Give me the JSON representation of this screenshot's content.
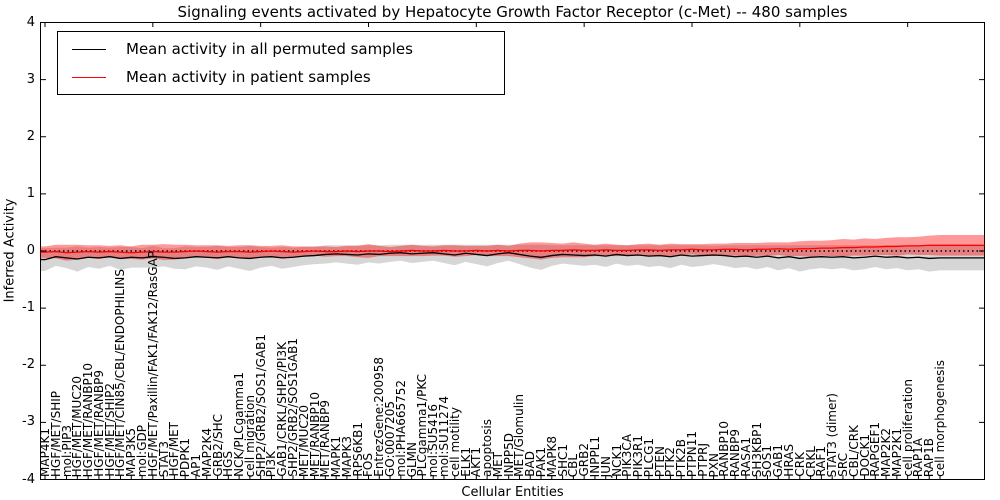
{
  "title": "Signaling events activated by Hepatocyte Growth Factor Receptor (c-Met) -- 480 samples",
  "xlabel": "Cellular Entities",
  "ylabel": "Inferred Activity",
  "legend": [
    {
      "label": "Mean activity in all permuted samples",
      "color": "#000000"
    },
    {
      "label": "Mean activity in patient samples",
      "color": "#ff0000"
    }
  ],
  "chart_data": {
    "type": "line",
    "title": "Signaling events activated by Hepatocyte Growth Factor Receptor (c-Met) -- 480 samples",
    "xlabel": "Cellular Entities",
    "ylabel": "Inferred Activity",
    "ylim": [
      -4,
      4
    ],
    "yticks": [
      4,
      3,
      2,
      1,
      0,
      -1,
      -2,
      -3,
      -4
    ],
    "grid": false,
    "legend_position": "upper left",
    "zero_line": {
      "style": "dotted",
      "color": "#000000",
      "y": 0
    },
    "categories": [
      "MAP4K1",
      "HGF/MET/SHIP",
      "mol:PIP3",
      "HGF/MET/MUC20",
      "HGF/MET/RANBP10",
      "HGF/MET/RANBP9",
      "HGF/MET/SHIP2",
      "HGF/MET/CIN85/CBL/ENDOPHILINS",
      "MAP3K5",
      "mol:GDP",
      "HGF/MET/Paxillin/FAK1/FAK12/RasGAP",
      "STAT3",
      "HGF/MET",
      "PDPK1",
      "AP1",
      "MAP2K4",
      "GRB2/SHC",
      "HGS",
      "NCK/PLCgamma1",
      "cell migration",
      "SHP2/GRB2/SOS1/GAB1",
      "PI3K",
      "GAB1/CRKL/SHP2/PI3K",
      "SHP2/GRB2/SOS1GAB1",
      "MET/MUC20",
      "MET/RANBP10",
      "MET/RANBP9",
      "MAPK1",
      "MAPK3",
      "RPS6KB1",
      "FOS",
      "EntrezGene:200958",
      "GO:0007205",
      "mol:PHA665752",
      "GLMN",
      "PLCgamma1/PKC",
      "mol:SU5416",
      "mol:SU11274",
      "cell motility",
      "ELK1",
      "AKT1",
      "apoptosis",
      "MET",
      "INPP5D",
      "MET/Glomulin",
      "BAD",
      "PAK1",
      "MAPK8",
      "SHC1",
      "CBL",
      "GRB2",
      "INPPL1",
      "JUN",
      "NCK1",
      "PIK3CA",
      "PIK3R1",
      "PLCG1",
      "PTEN",
      "PTK2",
      "PTK2B",
      "PTPN11",
      "PTPRJ",
      "PXN",
      "RANBP10",
      "RANBP9",
      "RASA1",
      "SH3KBP1",
      "SOS1",
      "GAB1",
      "HRAS",
      "CRK",
      "CRKL",
      "RAF1",
      "STAT3 (dimer)",
      "SRC",
      "CBL/CRK",
      "DOCK1",
      "RAPGEF1",
      "MAP2K2",
      "MAP2K1",
      "cell proliferation",
      "RAP1A",
      "RAP1B",
      "cell morphogenesis"
    ],
    "series": [
      {
        "name": "Mean activity in all permuted samples",
        "color": "#000000",
        "values": [
          -0.15,
          -0.1,
          -0.12,
          -0.14,
          -0.11,
          -0.12,
          -0.1,
          -0.13,
          -0.11,
          -0.12,
          -0.1,
          -0.11,
          -0.13,
          -0.12,
          -0.1,
          -0.11,
          -0.12,
          -0.1,
          -0.12,
          -0.13,
          -0.11,
          -0.1,
          -0.12,
          -0.11,
          -0.09,
          -0.08,
          -0.06,
          -0.05,
          -0.06,
          -0.07,
          -0.05,
          -0.06,
          -0.04,
          -0.03,
          -0.05,
          -0.04,
          -0.03,
          -0.05,
          -0.07,
          -0.04,
          -0.06,
          -0.08,
          -0.05,
          -0.03,
          -0.06,
          -0.09,
          -0.11,
          -0.08,
          -0.06,
          -0.07,
          -0.08,
          -0.07,
          -0.09,
          -0.06,
          -0.08,
          -0.07,
          -0.09,
          -0.08,
          -0.1,
          -0.07,
          -0.09,
          -0.08,
          -0.07,
          -0.08,
          -0.1,
          -0.09,
          -0.11,
          -0.09,
          -0.12,
          -0.1,
          -0.13,
          -0.11,
          -0.1,
          -0.11,
          -0.1,
          -0.12,
          -0.11,
          -0.09,
          -0.11,
          -0.1,
          -0.12,
          -0.11,
          -0.13,
          -0.12
        ],
        "band_halfwidths": [
          0.2,
          0.16,
          0.18,
          0.22,
          0.17,
          0.19,
          0.16,
          0.2,
          0.18,
          0.17,
          0.19,
          0.16,
          0.18,
          0.2,
          0.17,
          0.18,
          0.21,
          0.17,
          0.19,
          0.22,
          0.18,
          0.16,
          0.19,
          0.17,
          0.16,
          0.15,
          0.16,
          0.15,
          0.16,
          0.17,
          0.15,
          0.16,
          0.15,
          0.14,
          0.16,
          0.15,
          0.14,
          0.16,
          0.18,
          0.15,
          0.17,
          0.19,
          0.16,
          0.14,
          0.17,
          0.2,
          0.22,
          0.18,
          0.16,
          0.17,
          0.18,
          0.17,
          0.19,
          0.16,
          0.18,
          0.17,
          0.19,
          0.18,
          0.2,
          0.17,
          0.19,
          0.18,
          0.16,
          0.18,
          0.2,
          0.19,
          0.21,
          0.19,
          0.22,
          0.2,
          0.23,
          0.21,
          0.2,
          0.21,
          0.2,
          0.22,
          0.21,
          0.19,
          0.21,
          0.2,
          0.22,
          0.21,
          0.23,
          0.22
        ],
        "band_color": "rgba(0,0,0,0.16)"
      },
      {
        "name": "Mean activity in patient samples",
        "color": "#ff0000",
        "values": [
          -0.02,
          -0.01,
          -0.03,
          -0.02,
          -0.01,
          -0.02,
          -0.01,
          -0.02,
          -0.03,
          -0.02,
          -0.01,
          -0.02,
          -0.02,
          -0.01,
          0.0,
          -0.01,
          -0.02,
          -0.01,
          -0.01,
          -0.02,
          -0.01,
          0.0,
          -0.01,
          -0.02,
          -0.01,
          0.0,
          -0.01,
          -0.01,
          0.0,
          -0.01,
          0.0,
          0.0,
          -0.01,
          0.0,
          0.01,
          0.0,
          0.0,
          0.01,
          0.0,
          0.0,
          0.01,
          0.0,
          0.01,
          0.0,
          0.01,
          0.01,
          0.0,
          0.01,
          0.01,
          0.02,
          0.01,
          0.01,
          0.02,
          0.01,
          0.01,
          0.02,
          0.02,
          0.01,
          0.02,
          0.02,
          0.03,
          0.02,
          0.02,
          0.03,
          0.03,
          0.02,
          0.03,
          0.03,
          0.04,
          0.03,
          0.04,
          0.04,
          0.05,
          0.05,
          0.06,
          0.06,
          0.07,
          0.07,
          0.08,
          0.08,
          0.09,
          0.09,
          0.1,
          0.1
        ],
        "band_halfwidths": [
          0.1,
          0.12,
          0.14,
          0.13,
          0.11,
          0.12,
          0.1,
          0.12,
          0.11,
          0.13,
          0.12,
          0.14,
          0.13,
          0.12,
          0.1,
          0.11,
          0.12,
          0.1,
          0.11,
          0.12,
          0.1,
          0.09,
          0.11,
          0.1,
          0.09,
          0.08,
          0.09,
          0.08,
          0.09,
          0.1,
          0.12,
          0.09,
          0.08,
          0.09,
          0.1,
          0.09,
          0.08,
          0.09,
          0.1,
          0.09,
          0.08,
          0.09,
          0.1,
          0.09,
          0.12,
          0.14,
          0.15,
          0.13,
          0.12,
          0.13,
          0.12,
          0.1,
          0.11,
          0.1,
          0.09,
          0.1,
          0.11,
          0.1,
          0.11,
          0.1,
          0.09,
          0.1,
          0.11,
          0.1,
          0.11,
          0.12,
          0.11,
          0.12,
          0.11,
          0.12,
          0.13,
          0.14,
          0.13,
          0.14,
          0.15,
          0.14,
          0.15,
          0.14,
          0.15,
          0.16,
          0.15,
          0.16,
          0.17,
          0.18
        ],
        "band_color": "rgba(255,0,0,0.40)"
      }
    ]
  }
}
